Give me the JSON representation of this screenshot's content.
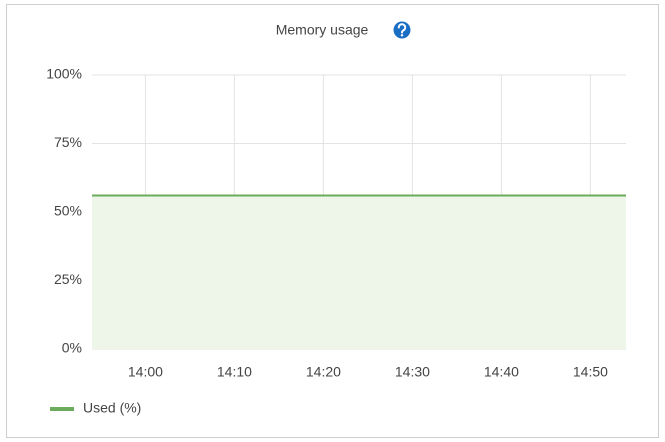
{
  "chart_data": {
    "type": "area",
    "title": "Memory usage",
    "x": [
      "13:54",
      "14:00",
      "14:05",
      "14:10",
      "14:15",
      "14:20",
      "14:25",
      "14:30",
      "14:35",
      "14:40",
      "14:45",
      "14:50",
      "14:54"
    ],
    "series": [
      {
        "name": "Used (%)",
        "color": "#6aab5c",
        "fill": "#eef6ea",
        "values": [
          56,
          56,
          56,
          56,
          56,
          56,
          56,
          56,
          56,
          56,
          56,
          56,
          56
        ]
      }
    ],
    "xlim": [
      "13:54",
      "14:54"
    ],
    "xticks": [
      "14:00",
      "14:10",
      "14:20",
      "14:30",
      "14:40",
      "14:50"
    ],
    "ylim": [
      0,
      100
    ],
    "yticks": [
      {
        "value": 0,
        "label": "0%"
      },
      {
        "value": 25,
        "label": "25%"
      },
      {
        "value": 50,
        "label": "50%"
      },
      {
        "value": 75,
        "label": "75%"
      },
      {
        "value": 100,
        "label": "100%"
      }
    ],
    "grid": true
  }
}
